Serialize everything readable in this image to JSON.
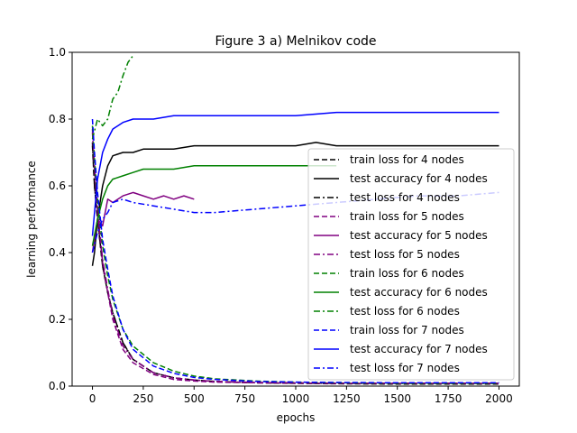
{
  "chart_data": {
    "type": "line",
    "title": "Figure 3 a) Melnikov code",
    "xlabel": "epochs",
    "ylabel": "learning performance",
    "xlim": [
      -100,
      2100
    ],
    "ylim": [
      0,
      1.0
    ],
    "xticks": [
      0,
      250,
      500,
      750,
      1000,
      1250,
      1500,
      1750,
      2000
    ],
    "yticks": [
      0.0,
      0.2,
      0.4,
      0.6,
      0.8,
      1.0
    ],
    "xtick_labels": [
      "0",
      "250",
      "500",
      "750",
      "1000",
      "1250",
      "1500",
      "1750",
      "2000"
    ],
    "ytick_labels": [
      "0.0",
      "0.2",
      "0.4",
      "0.6",
      "0.8",
      "1.0"
    ],
    "grid": false,
    "legend_position": "right",
    "series": [
      {
        "name": "train loss for 4 nodes",
        "color": "#000000",
        "style": "dashed",
        "x": [
          0,
          10,
          25,
          50,
          75,
          100,
          150,
          200,
          300,
          400,
          500,
          600,
          800,
          1000,
          1200,
          1500,
          1800,
          2000
        ],
        "y": [
          0.72,
          0.6,
          0.5,
          0.36,
          0.28,
          0.22,
          0.13,
          0.08,
          0.04,
          0.025,
          0.018,
          0.014,
          0.01,
          0.008,
          0.007,
          0.006,
          0.006,
          0.006
        ]
      },
      {
        "name": "test accuracy for 4 nodes",
        "color": "#000000",
        "style": "solid",
        "x": [
          0,
          10,
          25,
          50,
          75,
          100,
          150,
          200,
          250,
          300,
          400,
          500,
          600,
          800,
          1000,
          1100,
          1200,
          1400,
          1600,
          1800,
          2000
        ],
        "y": [
          0.36,
          0.4,
          0.5,
          0.6,
          0.66,
          0.69,
          0.7,
          0.7,
          0.71,
          0.71,
          0.71,
          0.72,
          0.72,
          0.72,
          0.72,
          0.73,
          0.72,
          0.72,
          0.72,
          0.72,
          0.72
        ]
      },
      {
        "name": "test loss for 4 nodes",
        "color": "#000000",
        "style": "dashdot",
        "x": [
          0,
          10,
          25,
          50,
          75,
          100,
          150,
          200,
          300,
          400,
          500,
          600,
          800,
          1000,
          1200,
          1500,
          1800,
          2000
        ],
        "y": [
          0.73,
          0.6,
          0.5,
          0.36,
          0.28,
          0.22,
          0.13,
          0.08,
          0.04,
          0.025,
          0.018,
          0.014,
          0.01,
          0.009,
          0.008,
          0.008,
          0.008,
          0.008
        ]
      },
      {
        "name": "train loss for 5 nodes",
        "color": "#800080",
        "style": "dashed",
        "x": [
          0,
          10,
          25,
          50,
          75,
          100,
          150,
          200,
          300,
          400,
          500,
          600,
          800,
          1000,
          1200,
          1500,
          1800,
          2000
        ],
        "y": [
          0.76,
          0.65,
          0.52,
          0.37,
          0.28,
          0.2,
          0.11,
          0.07,
          0.035,
          0.02,
          0.015,
          0.012,
          0.01,
          0.009,
          0.008,
          0.008,
          0.008,
          0.008
        ]
      },
      {
        "name": "test accuracy for 5 nodes",
        "color": "#800080",
        "style": "solid",
        "x": [
          0,
          25,
          50,
          75,
          100,
          150,
          200,
          250,
          300,
          350,
          400,
          450,
          500
        ],
        "y": [
          0.4,
          0.5,
          0.48,
          0.56,
          0.55,
          0.57,
          0.58,
          0.57,
          0.56,
          0.57,
          0.56,
          0.57,
          0.56
        ]
      },
      {
        "name": "test loss for 5 nodes",
        "color": "#800080",
        "style": "dashdot",
        "x": [
          0,
          10,
          25,
          50,
          75,
          100,
          150,
          200,
          300,
          400,
          500,
          600,
          800,
          1000,
          1200,
          1500,
          1800,
          2000
        ],
        "y": [
          0.77,
          0.66,
          0.53,
          0.38,
          0.29,
          0.21,
          0.12,
          0.08,
          0.04,
          0.025,
          0.018,
          0.014,
          0.011,
          0.01,
          0.009,
          0.009,
          0.009,
          0.009
        ]
      },
      {
        "name": "train loss for 6 nodes",
        "color": "#008000",
        "style": "dashed",
        "x": [
          0,
          10,
          25,
          50,
          75,
          100,
          150,
          200,
          300,
          400,
          500,
          600,
          800,
          1000,
          1200,
          1500,
          1800,
          2000
        ],
        "y": [
          0.78,
          0.68,
          0.56,
          0.42,
          0.33,
          0.26,
          0.17,
          0.12,
          0.07,
          0.045,
          0.03,
          0.022,
          0.015,
          0.012,
          0.01,
          0.009,
          0.009,
          0.009
        ]
      },
      {
        "name": "test accuracy for 6 nodes",
        "color": "#008000",
        "style": "solid",
        "x": [
          0,
          25,
          50,
          75,
          100,
          150,
          200,
          250,
          300,
          400,
          500,
          600,
          700,
          800,
          900,
          1000,
          1100,
          1200
        ],
        "y": [
          0.42,
          0.5,
          0.56,
          0.6,
          0.62,
          0.63,
          0.64,
          0.65,
          0.65,
          0.65,
          0.66,
          0.66,
          0.66,
          0.66,
          0.66,
          0.66,
          0.66,
          0.66
        ]
      },
      {
        "name": "test loss for 6 nodes",
        "color": "#008000",
        "style": "dashdot",
        "x": [
          0,
          25,
          50,
          75,
          100,
          125,
          150,
          175,
          200
        ],
        "y": [
          0.74,
          0.8,
          0.78,
          0.8,
          0.86,
          0.88,
          0.93,
          0.97,
          0.99
        ]
      },
      {
        "name": "train loss for 7 nodes",
        "color": "#0000ff",
        "style": "dashed",
        "x": [
          0,
          10,
          25,
          50,
          75,
          100,
          150,
          200,
          300,
          400,
          500,
          600,
          800,
          1000,
          1200,
          1500,
          1800,
          2000
        ],
        "y": [
          0.8,
          0.7,
          0.58,
          0.44,
          0.35,
          0.27,
          0.17,
          0.11,
          0.06,
          0.038,
          0.026,
          0.02,
          0.014,
          0.012,
          0.011,
          0.01,
          0.01,
          0.01
        ]
      },
      {
        "name": "test accuracy for 7 nodes",
        "color": "#0000ff",
        "style": "solid",
        "x": [
          0,
          25,
          50,
          75,
          100,
          150,
          200,
          300,
          400,
          500,
          600,
          800,
          1000,
          1200,
          1400,
          1600,
          1800,
          2000
        ],
        "y": [
          0.45,
          0.62,
          0.7,
          0.74,
          0.77,
          0.79,
          0.8,
          0.8,
          0.81,
          0.81,
          0.81,
          0.81,
          0.81,
          0.82,
          0.82,
          0.82,
          0.82,
          0.82
        ]
      },
      {
        "name": "test loss for 7 nodes",
        "color": "#0000ff",
        "style": "dashdot",
        "x": [
          0,
          25,
          50,
          75,
          100,
          150,
          200,
          300,
          400,
          500,
          600,
          800,
          1000,
          1200,
          1400,
          1600,
          1800,
          2000
        ],
        "y": [
          0.4,
          0.46,
          0.5,
          0.52,
          0.55,
          0.56,
          0.55,
          0.54,
          0.53,
          0.52,
          0.52,
          0.53,
          0.54,
          0.55,
          0.56,
          0.57,
          0.57,
          0.58
        ]
      }
    ]
  }
}
